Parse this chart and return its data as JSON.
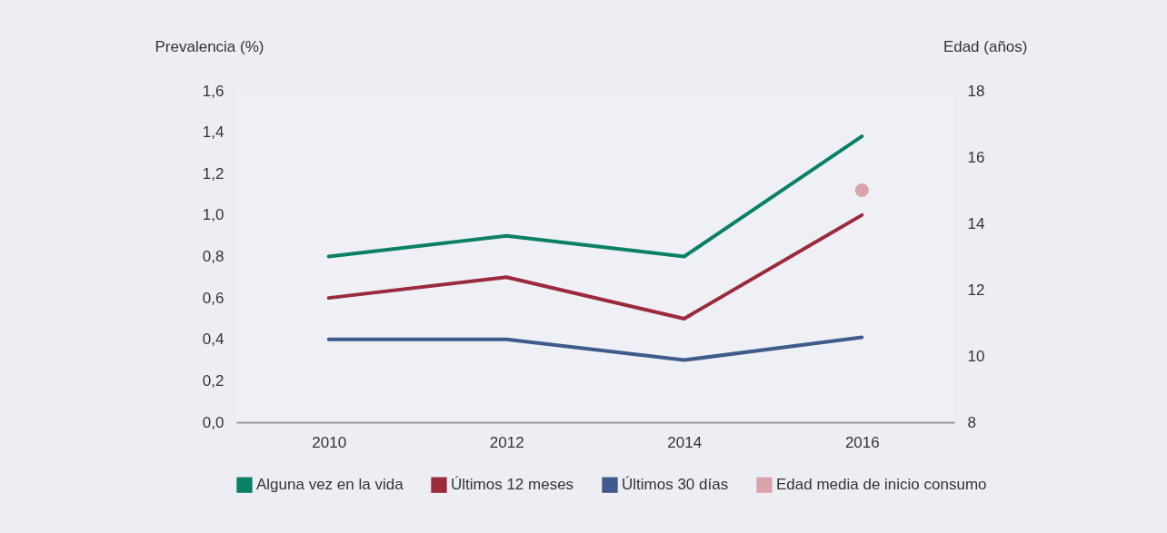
{
  "chart_data": {
    "type": "line",
    "ylabel": "Prevalencia (%)",
    "y2label": "Edad (años)",
    "categories": [
      "2010",
      "2012",
      "2014",
      "2016"
    ],
    "series": [
      {
        "name": "Alguna vez en la vida",
        "color": "#0a8066",
        "values": [
          0.8,
          0.9,
          0.8,
          1.38
        ]
      },
      {
        "name": "Últimos 12 meses",
        "color": "#9a2a3c",
        "values": [
          0.6,
          0.7,
          0.5,
          1.0
        ]
      },
      {
        "name": "Últimos 30 días",
        "color": "#3f5b8c",
        "values": [
          0.4,
          0.4,
          0.3,
          0.41
        ]
      },
      {
        "name": "Edad media de inicio consumo",
        "color": "#d9a3aa",
        "type": "scatter",
        "axis": "y2",
        "values": [
          null,
          null,
          null,
          15
        ]
      }
    ],
    "ylim": [
      0,
      1.6
    ],
    "yticks": [
      {
        "value": 0,
        "label": "0,0"
      },
      {
        "value": 0.2,
        "label": "0,2"
      },
      {
        "value": 0.4,
        "label": "0,4"
      },
      {
        "value": 0.6,
        "label": "0,6"
      },
      {
        "value": 0.8,
        "label": "0,8"
      },
      {
        "value": 1.0,
        "label": "1,0"
      },
      {
        "value": 1.2,
        "label": "1,2"
      },
      {
        "value": 1.4,
        "label": "1,4"
      },
      {
        "value": 1.6,
        "label": "1,6"
      }
    ],
    "y2lim": [
      8,
      18
    ],
    "y2ticks": [
      8,
      10,
      12,
      14,
      16,
      18
    ],
    "grid": false,
    "legend": "bottom"
  }
}
